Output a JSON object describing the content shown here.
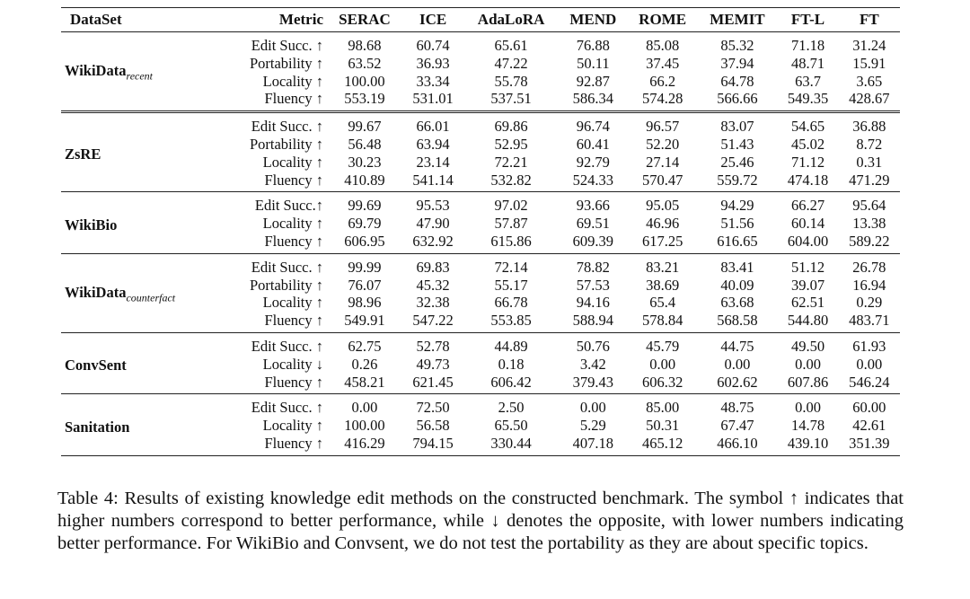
{
  "table": {
    "headers": [
      "DataSet",
      "Metric",
      "SERAC",
      "ICE",
      "AdaLoRA",
      "MEND",
      "ROME",
      "MEMIT",
      "FT-L",
      "FT"
    ],
    "groups": [
      {
        "dataset": "WikiData",
        "dataset_sub": "recent",
        "rows": [
          {
            "metric": "Edit Succ. ↑",
            "values": [
              "98.68",
              "60.74",
              "65.61",
              "76.88",
              "85.08",
              "85.32",
              "71.18",
              "31.24"
            ]
          },
          {
            "metric": "Portability ↑",
            "values": [
              "63.52",
              "36.93",
              "47.22",
              "50.11",
              "37.45",
              "37.94",
              "48.71",
              "15.91"
            ]
          },
          {
            "metric": "Locality ↑",
            "values": [
              "100.00",
              "33.34",
              "55.78",
              "92.87",
              "66.2",
              "64.78",
              "63.7",
              "3.65"
            ]
          },
          {
            "metric": "Fluency ↑",
            "values": [
              "553.19",
              "531.01",
              "537.51",
              "586.34",
              "574.28",
              "566.66",
              "549.35",
              "428.67"
            ]
          }
        ]
      },
      {
        "dataset": "ZsRE",
        "rows": [
          {
            "metric": "Edit Succ. ↑",
            "values": [
              "99.67",
              "66.01",
              "69.86",
              "96.74",
              "96.57",
              "83.07",
              "54.65",
              "36.88"
            ]
          },
          {
            "metric": "Portability ↑",
            "values": [
              "56.48",
              "63.94",
              "52.95",
              "60.41",
              "52.20",
              "51.43",
              "45.02",
              "8.72"
            ]
          },
          {
            "metric": "Locality ↑",
            "values": [
              "30.23",
              "23.14",
              "72.21",
              "92.79",
              "27.14",
              "25.46",
              "71.12",
              "0.31"
            ]
          },
          {
            "metric": "Fluency ↑",
            "values": [
              "410.89",
              "541.14",
              "532.82",
              "524.33",
              "570.47",
              "559.72",
              "474.18",
              "471.29"
            ]
          }
        ]
      },
      {
        "dataset": "WikiBio",
        "rows": [
          {
            "metric": "Edit Succ.↑",
            "values": [
              "99.69",
              "95.53",
              "97.02",
              "93.66",
              "95.05",
              "94.29",
              "66.27",
              "95.64"
            ]
          },
          {
            "metric": "Locality ↑",
            "values": [
              "69.79",
              "47.90",
              "57.87",
              "69.51",
              "46.96",
              "51.56",
              "60.14",
              "13.38"
            ]
          },
          {
            "metric": "Fluency ↑",
            "values": [
              "606.95",
              "632.92",
              "615.86",
              "609.39",
              "617.25",
              "616.65",
              "604.00",
              "589.22"
            ]
          }
        ]
      },
      {
        "dataset": "WikiData",
        "dataset_sub": "counterfact",
        "rows": [
          {
            "metric": "Edit Succ. ↑",
            "values": [
              "99.99",
              "69.83",
              "72.14",
              "78.82",
              "83.21",
              "83.41",
              "51.12",
              "26.78"
            ]
          },
          {
            "metric": "Portability ↑",
            "values": [
              "76.07",
              "45.32",
              "55.17",
              "57.53",
              "38.69",
              "40.09",
              "39.07",
              "16.94"
            ]
          },
          {
            "metric": "Locality ↑",
            "values": [
              "98.96",
              "32.38",
              "66.78",
              "94.16",
              "65.4",
              "63.68",
              "62.51",
              "0.29"
            ]
          },
          {
            "metric": "Fluency ↑",
            "values": [
              "549.91",
              "547.22",
              "553.85",
              "588.94",
              "578.84",
              "568.58",
              "544.80",
              "483.71"
            ]
          }
        ]
      },
      {
        "dataset": "ConvSent",
        "rows": [
          {
            "metric": "Edit Succ. ↑",
            "values": [
              "62.75",
              "52.78",
              "44.89",
              "50.76",
              "45.79",
              "44.75",
              "49.50",
              "61.93"
            ]
          },
          {
            "metric": "Locality ↓",
            "values": [
              "0.26",
              "49.73",
              "0.18",
              "3.42",
              "0.00",
              "0.00",
              "0.00",
              "0.00"
            ]
          },
          {
            "metric": "Fluency ↑",
            "values": [
              "458.21",
              "621.45",
              "606.42",
              "379.43",
              "606.32",
              "602.62",
              "607.86",
              "546.24"
            ]
          }
        ]
      },
      {
        "dataset": "Sanitation",
        "rows": [
          {
            "metric": "Edit Succ. ↑",
            "values": [
              "0.00",
              "72.50",
              "2.50",
              "0.00",
              "85.00",
              "48.75",
              "0.00",
              "60.00"
            ]
          },
          {
            "metric": "Locality ↑",
            "values": [
              "100.00",
              "56.58",
              "65.50",
              "5.29",
              "50.31",
              "67.47",
              "14.78",
              "42.61"
            ]
          },
          {
            "metric": "Fluency ↑",
            "values": [
              "416.29",
              "794.15",
              "330.44",
              "407.18",
              "465.12",
              "466.10",
              "439.10",
              "351.39"
            ]
          }
        ]
      }
    ]
  },
  "caption": "Table 4: Results of existing knowledge edit methods on the constructed benchmark. The symbol ↑ indicates that higher numbers correspond to better performance, while ↓ denotes the opposite, with lower numbers indicating better performance. For WikiBio and Convsent, we do not test the portability as they are about specific topics."
}
